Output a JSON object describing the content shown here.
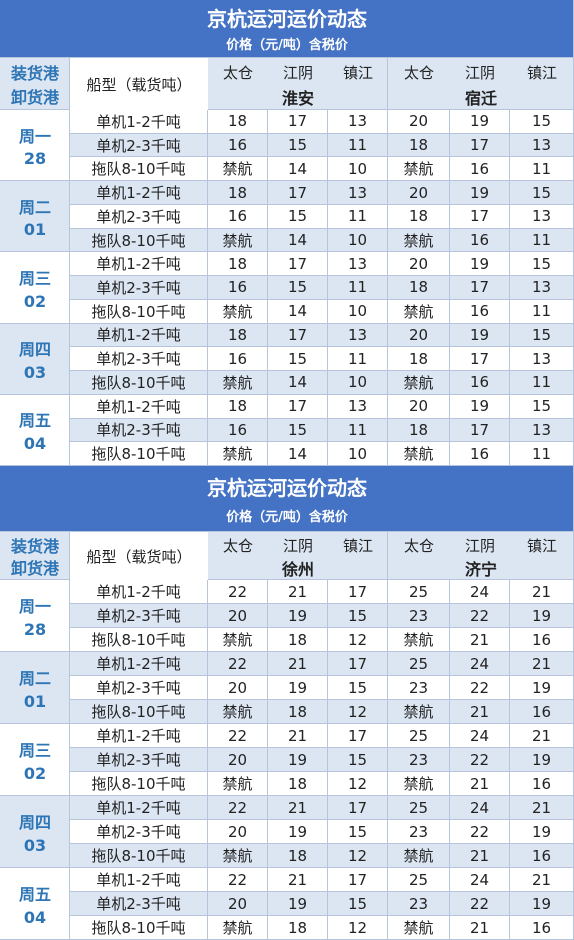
{
  "tables": [
    {
      "title": "京杭运河运价动态",
      "subtitle": "价格（元/吨）含税价",
      "header": {
        "origin": "装货港",
        "destination": "卸货港",
        "ship_type": "船型（载货吨）",
        "ports": [
          "太仓",
          "江阴",
          "镇江",
          "太仓",
          "江阴",
          "镇江"
        ],
        "destinations": [
          "淮安",
          "宿迁"
        ]
      },
      "rows": [
        {
          "day": "周一",
          "date": "28",
          "entries": [
            {
              "ship": "单机1-2千吨",
              "values": [
                18,
                17,
                13,
                20,
                19,
                15
              ]
            },
            {
              "ship": "单机2-3千吨",
              "values": [
                16,
                15,
                11,
                18,
                17,
                13
              ]
            },
            {
              "ship": "拖队8-10千吨",
              "values": [
                "禁航",
                14,
                10,
                "禁航",
                16,
                11
              ]
            }
          ]
        },
        {
          "day": "周二",
          "date": "01",
          "entries": [
            {
              "ship": "单机1-2千吨",
              "values": [
                18,
                17,
                13,
                20,
                19,
                15
              ]
            },
            {
              "ship": "单机2-3千吨",
              "values": [
                16,
                15,
                11,
                18,
                17,
                13
              ]
            },
            {
              "ship": "拖队8-10千吨",
              "values": [
                "禁航",
                14,
                10,
                "禁航",
                16,
                11
              ]
            }
          ]
        },
        {
          "day": "周三",
          "date": "02",
          "entries": [
            {
              "ship": "单机1-2千吨",
              "values": [
                18,
                17,
                13,
                20,
                19,
                15
              ]
            },
            {
              "ship": "单机2-3千吨",
              "values": [
                16,
                15,
                11,
                18,
                17,
                13
              ]
            },
            {
              "ship": "拖队8-10千吨",
              "values": [
                "禁航",
                14,
                10,
                "禁航",
                16,
                11
              ]
            }
          ]
        },
        {
          "day": "周四",
          "date": "03",
          "entries": [
            {
              "ship": "单机1-2千吨",
              "values": [
                18,
                17,
                13,
                20,
                19,
                15
              ]
            },
            {
              "ship": "单机2-3千吨",
              "values": [
                16,
                15,
                11,
                18,
                17,
                13
              ]
            },
            {
              "ship": "拖队8-10千吨",
              "values": [
                "禁航",
                14,
                10,
                "禁航",
                16,
                11
              ]
            }
          ]
        },
        {
          "day": "周五",
          "date": "04",
          "entries": [
            {
              "ship": "单机1-2千吨",
              "values": [
                18,
                17,
                13,
                20,
                19,
                15
              ]
            },
            {
              "ship": "单机2-3千吨",
              "values": [
                16,
                15,
                11,
                18,
                17,
                13
              ]
            },
            {
              "ship": "拖队8-10千吨",
              "values": [
                "禁航",
                14,
                10,
                "禁航",
                16,
                11
              ]
            }
          ]
        }
      ]
    },
    {
      "title": "京杭运河运价动态",
      "subtitle": "价格（元/吨）含税价",
      "header": {
        "origin": "装货港",
        "destination": "卸货港",
        "ship_type": "船型（载货吨）",
        "ports": [
          "太仓",
          "江阴",
          "镇江",
          "太仓",
          "江阴",
          "镇江"
        ],
        "destinations": [
          "徐州",
          "济宁"
        ]
      },
      "rows": [
        {
          "day": "周一",
          "date": "28",
          "entries": [
            {
              "ship": "单机1-2千吨",
              "values": [
                22,
                21,
                17,
                25,
                24,
                21
              ]
            },
            {
              "ship": "单机2-3千吨",
              "values": [
                20,
                19,
                15,
                23,
                22,
                19
              ]
            },
            {
              "ship": "拖队8-10千吨",
              "values": [
                "禁航",
                18,
                12,
                "禁航",
                21,
                16
              ]
            }
          ]
        },
        {
          "day": "周二",
          "date": "01",
          "entries": [
            {
              "ship": "单机1-2千吨",
              "values": [
                22,
                21,
                17,
                25,
                24,
                21
              ]
            },
            {
              "ship": "单机2-3千吨",
              "values": [
                20,
                19,
                15,
                23,
                22,
                19
              ]
            },
            {
              "ship": "拖队8-10千吨",
              "values": [
                "禁航",
                18,
                12,
                "禁航",
                21,
                16
              ]
            }
          ]
        },
        {
          "day": "周三",
          "date": "02",
          "entries": [
            {
              "ship": "单机1-2千吨",
              "values": [
                22,
                21,
                17,
                25,
                24,
                21
              ]
            },
            {
              "ship": "单机2-3千吨",
              "values": [
                20,
                19,
                15,
                23,
                22,
                19
              ]
            },
            {
              "ship": "拖队8-10千吨",
              "values": [
                "禁航",
                18,
                12,
                "禁航",
                21,
                16
              ]
            }
          ]
        },
        {
          "day": "周四",
          "date": "03",
          "entries": [
            {
              "ship": "单机1-2千吨",
              "values": [
                22,
                21,
                17,
                25,
                24,
                21
              ]
            },
            {
              "ship": "单机2-3千吨",
              "values": [
                20,
                19,
                15,
                23,
                22,
                19
              ]
            },
            {
              "ship": "拖队8-10千吨",
              "values": [
                "禁航",
                18,
                12,
                "禁航",
                21,
                16
              ]
            }
          ]
        },
        {
          "day": "周五",
          "date": "04",
          "entries": [
            {
              "ship": "单机1-2千吨",
              "values": [
                22,
                21,
                17,
                25,
                24,
                21
              ]
            },
            {
              "ship": "单机2-3千吨",
              "values": [
                20,
                19,
                15,
                23,
                22,
                19
              ]
            },
            {
              "ship": "拖队8-10千吨",
              "values": [
                "禁航",
                18,
                12,
                "禁航",
                21,
                16
              ]
            }
          ]
        }
      ]
    }
  ]
}
